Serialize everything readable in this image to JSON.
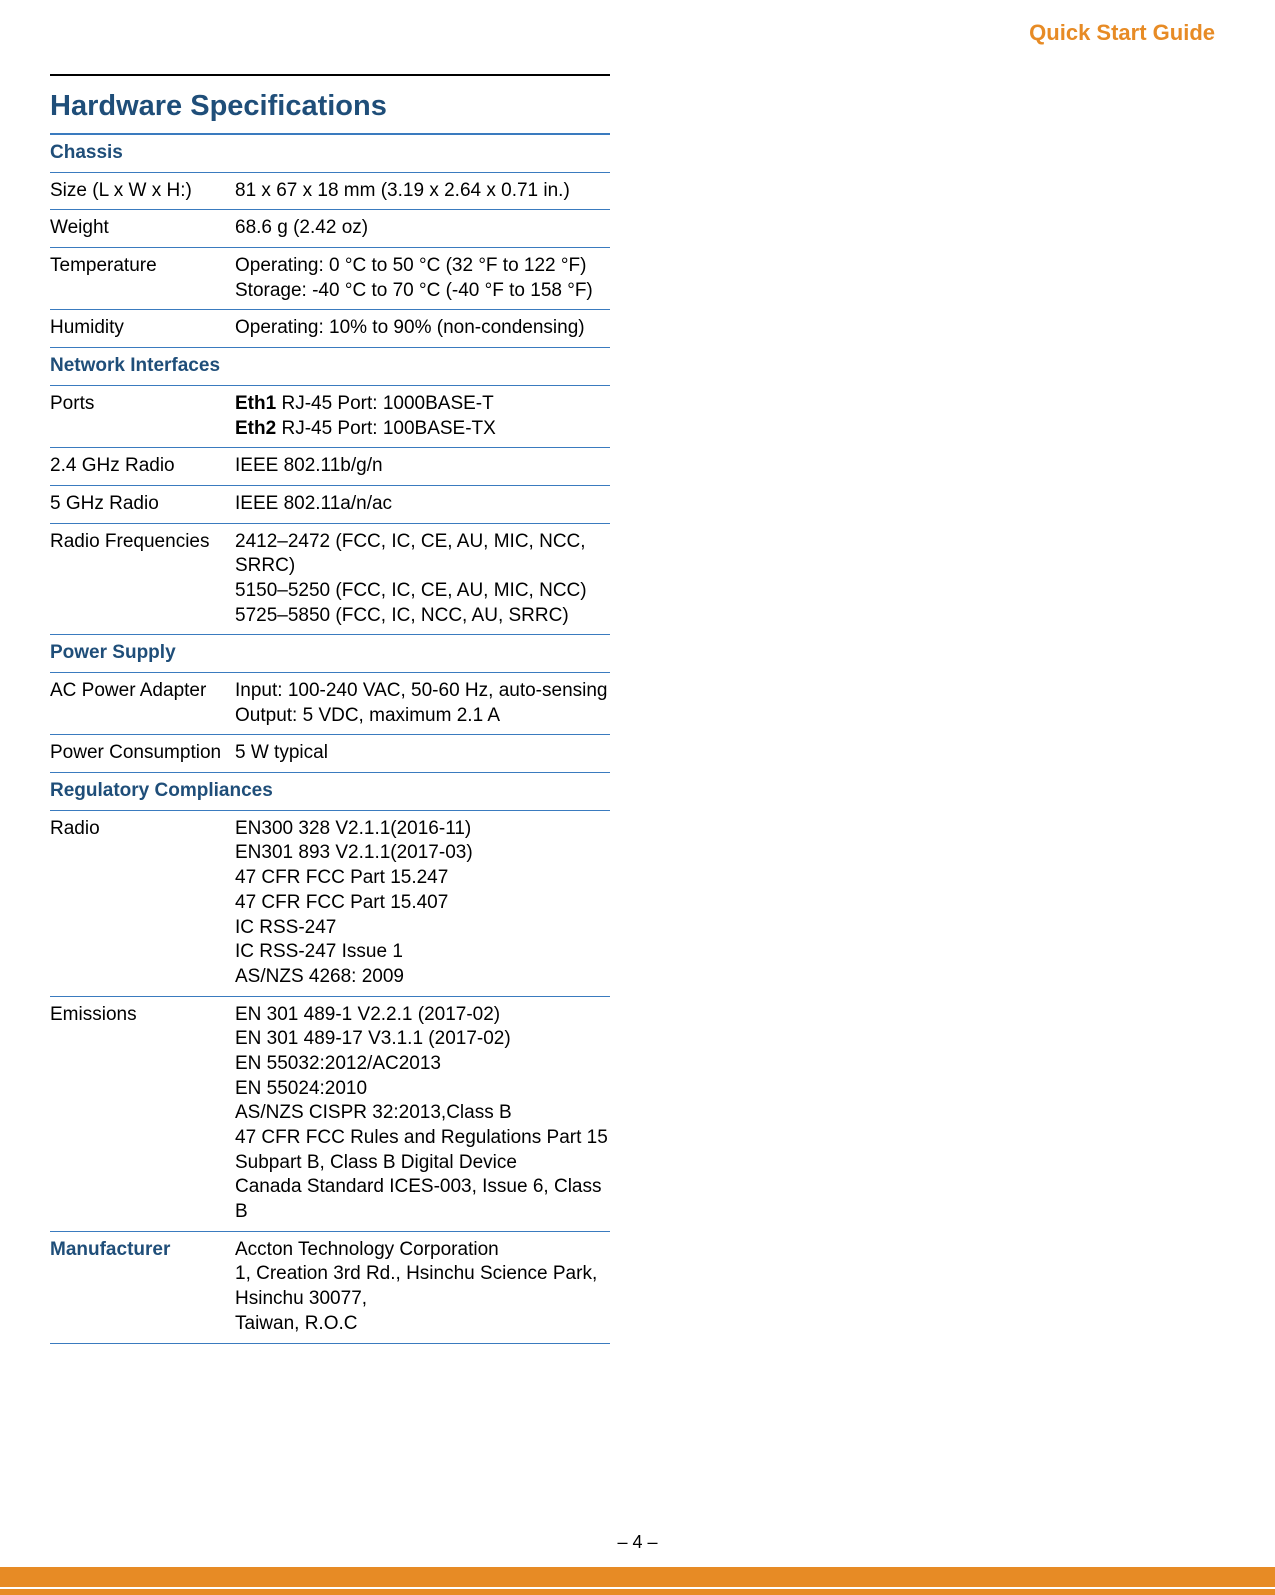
{
  "header": {
    "label": "Quick Start Guide"
  },
  "title": "Hardware Specifications",
  "colors": {
    "accent_orange": "#e78b25",
    "heading_blue": "#1f4e79",
    "rule_blue": "#3a7bbf",
    "text": "#000000",
    "background": "#ffffff"
  },
  "typography": {
    "header_label_size_pt": 16,
    "section_title_size_pt": 22,
    "body_size_pt": 14
  },
  "sections": [
    {
      "category": "Chassis",
      "rows": [
        {
          "label": "Size (L x W x H:)",
          "lines": [
            "81 x 67 x 18 mm (3.19 x 2.64 x 0.71 in.)"
          ]
        },
        {
          "label": "Weight",
          "lines": [
            "68.6 g (2.42 oz)"
          ]
        },
        {
          "label": "Temperature",
          "lines": [
            "Operating: 0 °C to 50 °C (32 °F to 122 °F)",
            "Storage: -40 °C to 70 °C (-40 °F to 158 °F)"
          ]
        },
        {
          "label": "Humidity",
          "lines": [
            "Operating: 10% to 90% (non-condensing)"
          ]
        }
      ]
    },
    {
      "category": "Network Interfaces",
      "rows": [
        {
          "label": "Ports",
          "lines_rich": [
            {
              "bold": "Eth1",
              "rest": " RJ-45 Port: 1000BASE-T"
            },
            {
              "bold": "Eth2",
              "rest": " RJ-45 Port: 100BASE-TX"
            }
          ]
        },
        {
          "label": "2.4 GHz Radio",
          "lines": [
            "IEEE 802.11b/g/n"
          ]
        },
        {
          "label": "5 GHz Radio",
          "lines": [
            "IEEE 802.11a/n/ac"
          ]
        },
        {
          "label": "Radio Frequencies",
          "lines": [
            "2412–2472 (FCC, IC, CE, AU, MIC, NCC, SRRC)",
            "5150–5250 (FCC, IC, CE, AU, MIC, NCC)",
            "5725–5850 (FCC, IC, NCC, AU, SRRC)"
          ]
        }
      ]
    },
    {
      "category": "Power Supply",
      "rows": [
        {
          "label": "AC Power Adapter",
          "lines": [
            "Input: 100-240 VAC, 50-60 Hz, auto-sensing",
            "Output: 5 VDC, maximum 2.1 A"
          ]
        },
        {
          "label": "Power Consumption",
          "lines": [
            "5 W typical"
          ]
        }
      ]
    },
    {
      "category": "Regulatory Compliances",
      "rows": [
        {
          "label": "Radio",
          "lines": [
            "EN300 328 V2.1.1(2016-11)",
            "EN301 893 V2.1.1(2017-03)",
            "47 CFR FCC Part 15.247",
            "47 CFR FCC Part 15.407",
            "IC RSS-247",
            "IC RSS-247 Issue 1",
            "AS/NZS 4268: 2009"
          ]
        },
        {
          "label": "Emissions",
          "lines": [
            "EN 301 489-1 V2.2.1 (2017-02)",
            "EN 301 489-17 V3.1.1 (2017-02)",
            "EN 55032:2012/AC2013",
            "EN 55024:2010",
            "AS/NZS CISPR 32:2013,Class B",
            "47 CFR FCC Rules and Regulations Part 15 Subpart B, Class B Digital Device",
            "Canada Standard ICES-003, Issue 6, Class B"
          ]
        },
        {
          "label": "Manufacturer",
          "label_bold": true,
          "lines": [
            "Accton Technology Corporation",
            "1, Creation 3rd Rd., Hsinchu Science Park,",
            "Hsinchu 30077,",
            "Taiwan, R.O.C"
          ]
        }
      ]
    }
  ],
  "page_number": "–  4  –"
}
